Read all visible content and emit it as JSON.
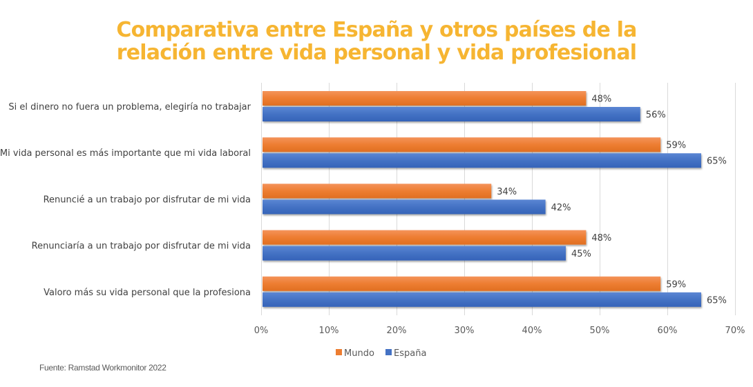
{
  "title_lines": [
    "Comparativa entre España y otros países de la",
    "relación entre vida personal y vida profesional"
  ],
  "source": "Fuente: Ramstad Workmonitor 2022",
  "colors": {
    "title": "#F6B532",
    "mundo": "#ED7D31",
    "espana": "#4472C4",
    "grid": "#D9D9D9"
  },
  "chart_data": {
    "type": "bar",
    "orientation": "horizontal",
    "title": "Comparativa entre España y otros países de la relación entre vida personal y vida profesional",
    "categories": [
      "Si el dinero no fuera un problema, elegiría no trabajar",
      "Mi vida personal es más importante que mi vida laboral",
      "Renuncié a un trabajo por disfrutar de mi vida",
      "Renunciaría a un trabajo por disfrutar de  mi vida",
      "Valoro más su vida personal que la profesiona"
    ],
    "series": [
      {
        "name": "Mundo",
        "color": "#ED7D31",
        "values": [
          48,
          59,
          34,
          48,
          59
        ],
        "labels": [
          "48%",
          "59%",
          "34%",
          "48%",
          "59%"
        ]
      },
      {
        "name": "España",
        "color": "#4472C4",
        "values": [
          56,
          65,
          42,
          45,
          65
        ],
        "labels": [
          "56%",
          "65%",
          "42%",
          "45%",
          "65%"
        ]
      }
    ],
    "xlim": [
      0,
      70
    ],
    "xticks": [
      0,
      10,
      20,
      30,
      40,
      50,
      60,
      70
    ],
    "xtick_labels": [
      "0%",
      "10%",
      "20%",
      "30%",
      "40%",
      "50%",
      "60%",
      "70%"
    ],
    "xlabel": "",
    "ylabel": "",
    "grid": true,
    "legend": {
      "position": "bottom",
      "entries": [
        "Mundo",
        "España"
      ]
    }
  }
}
